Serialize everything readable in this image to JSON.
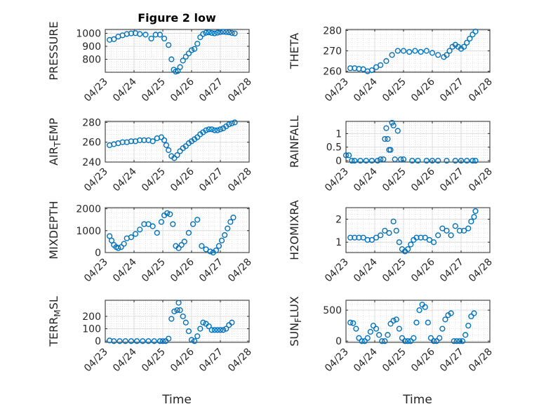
{
  "figure": {
    "title": "Figure 2 low",
    "marker_color": "#0072bd"
  },
  "chart_data": [
    {
      "type": "scatter",
      "ylabel": "PRESSURE",
      "ylim": [
        700,
        1030
      ],
      "yticks": [
        800,
        900,
        1000
      ],
      "xlim": [
        "04/23",
        "04/28"
      ],
      "xtick_labels": [
        "04/23",
        "04/24",
        "04/25",
        "04/26",
        "04/27",
        "04/28"
      ],
      "series": [
        {
          "x": [
            0.15,
            0.3,
            0.45,
            0.6,
            0.75,
            0.9,
            1.05,
            1.2,
            1.4,
            1.6,
            1.75,
            1.9,
            2.05,
            2.2,
            2.3,
            2.38,
            2.45,
            2.52,
            2.6,
            2.7,
            2.8,
            2.9,
            3.0,
            3.1,
            3.2,
            3.3,
            3.4,
            3.5,
            3.6,
            3.7,
            3.8,
            3.9,
            4.0,
            4.1,
            4.2,
            4.3,
            4.4,
            4.5
          ],
          "y": [
            950,
            955,
            975,
            985,
            995,
            1000,
            1002,
            995,
            990,
            960,
            990,
            990,
            960,
            910,
            800,
            720,
            705,
            710,
            740,
            790,
            820,
            845,
            870,
            880,
            920,
            970,
            995,
            1005,
            1008,
            1003,
            1000,
            1005,
            1010,
            1012,
            1010,
            1008,
            1003,
            1000
          ]
        }
      ]
    },
    {
      "type": "scatter",
      "ylabel": "THETA",
      "ylim": [
        259.5,
        280.5
      ],
      "yticks": [
        260,
        270,
        280
      ],
      "xlim": [
        "04/23",
        "04/28"
      ],
      "xtick_labels": [
        "04/23",
        "04/24",
        "04/25",
        "04/26",
        "04/27",
        "04/28"
      ],
      "series": [
        {
          "x": [
            0.15,
            0.3,
            0.45,
            0.6,
            0.75,
            0.9,
            1.05,
            1.2,
            1.4,
            1.6,
            1.8,
            2.0,
            2.2,
            2.4,
            2.6,
            2.8,
            3.0,
            3.2,
            3.4,
            3.5,
            3.6,
            3.7,
            3.8,
            3.9,
            4.0,
            4.1,
            4.2,
            4.3,
            4.4,
            4.5
          ],
          "y": [
            261.5,
            261.5,
            261.2,
            261,
            260,
            260.5,
            262,
            263,
            265,
            268,
            270,
            270,
            269.5,
            270,
            269.5,
            270,
            269,
            268,
            267,
            268,
            270,
            272,
            273,
            272,
            271,
            272,
            274,
            276,
            278,
            279.5
          ]
        }
      ]
    },
    {
      "type": "scatter",
      "ylabel": "AIR_TEMP",
      "ylim": [
        240,
        281
      ],
      "yticks": [
        240,
        260,
        280
      ],
      "xlim": [
        "04/23",
        "04/28"
      ],
      "xtick_labels": [
        "04/23",
        "04/24",
        "04/25",
        "04/26",
        "04/27",
        "04/28"
      ],
      "series": [
        {
          "x": [
            0.15,
            0.3,
            0.45,
            0.6,
            0.75,
            0.9,
            1.05,
            1.2,
            1.35,
            1.5,
            1.65,
            1.8,
            1.95,
            2.05,
            2.12,
            2.2,
            2.3,
            2.4,
            2.5,
            2.6,
            2.7,
            2.8,
            2.9,
            3.0,
            3.1,
            3.2,
            3.3,
            3.4,
            3.5,
            3.6,
            3.7,
            3.8,
            3.9,
            4.0,
            4.1,
            4.2,
            4.3,
            4.4,
            4.5
          ],
          "y": [
            257,
            258,
            259,
            260,
            260,
            261,
            261,
            262,
            262,
            262,
            261,
            264,
            265,
            262,
            257,
            252,
            246,
            244,
            247,
            251,
            254,
            256,
            259,
            261,
            263,
            265,
            268,
            270,
            272,
            273,
            273,
            272,
            272,
            273,
            274,
            276,
            278,
            279,
            280
          ]
        }
      ]
    },
    {
      "type": "scatter",
      "ylabel": "RAINFALL",
      "ylim": [
        -0.05,
        1.45
      ],
      "yticks": [
        0,
        0.5,
        1
      ],
      "xlim": [
        "04/23",
        "04/28"
      ],
      "xtick_labels": [
        "04/23",
        "04/24",
        "04/25",
        "04/26",
        "04/27",
        "04/28"
      ],
      "series": [
        {
          "x": [
            0.0,
            0.1,
            0.2,
            0.3,
            0.5,
            0.7,
            0.9,
            1.1,
            1.2,
            1.3,
            1.35,
            1.4,
            1.45,
            1.5,
            1.55,
            1.6,
            1.65,
            1.7,
            1.8,
            1.9,
            2.0,
            2.3,
            2.5,
            2.8,
            3.0,
            3.2,
            3.5,
            3.8,
            4.0,
            4.2,
            4.4,
            4.5
          ],
          "y": [
            0.2,
            0.2,
            0,
            0,
            0,
            0,
            0,
            0,
            0.05,
            0.05,
            0.8,
            1.2,
            0.8,
            0.4,
            0.4,
            1.4,
            1.3,
            0.05,
            1.1,
            0.05,
            0.05,
            0,
            0,
            0,
            0,
            0,
            0,
            0,
            0,
            0,
            0,
            0
          ]
        }
      ]
    },
    {
      "type": "scatter",
      "ylabel": "MIXDEPTH",
      "ylim": [
        0,
        2050
      ],
      "yticks": [
        0,
        1000,
        2000
      ],
      "xlim": [
        "04/23",
        "04/28"
      ],
      "xtick_labels": [
        "04/23",
        "04/24",
        "04/25",
        "04/26",
        "04/27",
        "04/28"
      ],
      "series": [
        {
          "x": [
            0.15,
            0.22,
            0.3,
            0.38,
            0.45,
            0.55,
            0.65,
            0.75,
            0.9,
            1.05,
            1.2,
            1.35,
            1.5,
            1.65,
            1.8,
            1.95,
            2.05,
            2.15,
            2.25,
            2.35,
            2.45,
            2.55,
            2.65,
            2.75,
            2.9,
            3.05,
            3.2,
            3.35,
            3.5,
            3.65,
            3.75,
            3.85,
            3.95,
            4.05,
            4.15,
            4.25,
            4.35,
            4.45
          ],
          "y": [
            750,
            550,
            350,
            250,
            200,
            250,
            400,
            650,
            700,
            850,
            1050,
            1300,
            1300,
            1200,
            900,
            1400,
            1700,
            1800,
            1750,
            1300,
            300,
            200,
            350,
            500,
            900,
            1300,
            1500,
            300,
            150,
            50,
            0,
            100,
            300,
            550,
            800,
            1100,
            1400,
            1600
          ]
        }
      ]
    },
    {
      "type": "scatter",
      "ylabel": "H2OMIXRA",
      "ylim": [
        0.55,
        2.5
      ],
      "yticks": [
        1,
        2
      ],
      "xlim": [
        "04/23",
        "04/28"
      ],
      "xtick_labels": [
        "04/23",
        "04/24",
        "04/25",
        "04/26",
        "04/27",
        "04/28"
      ],
      "series": [
        {
          "x": [
            0.15,
            0.3,
            0.45,
            0.6,
            0.75,
            0.9,
            1.05,
            1.2,
            1.35,
            1.5,
            1.65,
            1.75,
            1.85,
            1.95,
            2.05,
            2.15,
            2.25,
            2.35,
            2.45,
            2.6,
            2.75,
            2.9,
            3.05,
            3.2,
            3.35,
            3.5,
            3.65,
            3.8,
            3.95,
            4.1,
            4.25,
            4.35,
            4.45,
            4.5
          ],
          "y": [
            1.2,
            1.2,
            1.2,
            1.2,
            1.1,
            1.1,
            1.2,
            1.3,
            1.5,
            1.4,
            1.9,
            1.5,
            1.0,
            0.7,
            0.6,
            0.7,
            0.9,
            1.1,
            1.2,
            1.2,
            1.2,
            1.1,
            1.0,
            1.3,
            1.6,
            1.5,
            1.3,
            1.7,
            1.5,
            1.5,
            1.6,
            1.9,
            2.1,
            2.35
          ]
        }
      ]
    },
    {
      "type": "scatter",
      "ylabel": "TERR_MSL",
      "ylim": [
        -10,
        330
      ],
      "yticks": [
        0,
        100,
        200
      ],
      "xlim": [
        "04/23",
        "04/28"
      ],
      "xtick_labels": [
        "04/23",
        "04/24",
        "04/25",
        "04/26",
        "04/27",
        "04/28"
      ],
      "series": [
        {
          "x": [
            0.15,
            0.3,
            0.5,
            0.7,
            0.9,
            1.1,
            1.3,
            1.5,
            1.7,
            1.9,
            2.0,
            2.1,
            2.2,
            2.3,
            2.4,
            2.5,
            2.55,
            2.6,
            2.7,
            2.8,
            2.9,
            3.0,
            3.1,
            3.2,
            3.3,
            3.4,
            3.5,
            3.6,
            3.7,
            3.8,
            3.9,
            4.0,
            4.1,
            4.2,
            4.3,
            4.4
          ],
          "y": [
            5,
            0,
            0,
            0,
            0,
            0,
            0,
            0,
            0,
            0,
            0,
            0,
            20,
            180,
            240,
            250,
            310,
            250,
            200,
            150,
            80,
            10,
            0,
            40,
            100,
            150,
            140,
            120,
            90,
            90,
            90,
            90,
            90,
            100,
            130,
            150
          ]
        }
      ]
    },
    {
      "type": "scatter",
      "ylabel": "SUN_FLUX",
      "ylim": [
        -20,
        660
      ],
      "yticks": [
        0,
        500
      ],
      "xlim": [
        "04/23",
        "04/28"
      ],
      "xtick_labels": [
        "04/23",
        "04/24",
        "04/25",
        "04/26",
        "04/27",
        "04/28"
      ],
      "series": [
        {
          "x": [
            0.15,
            0.25,
            0.35,
            0.45,
            0.55,
            0.65,
            0.75,
            0.85,
            0.95,
            1.05,
            1.15,
            1.25,
            1.35,
            1.45,
            1.55,
            1.65,
            1.75,
            1.85,
            1.95,
            2.05,
            2.15,
            2.25,
            2.35,
            2.45,
            2.55,
            2.65,
            2.75,
            2.85,
            2.95,
            3.05,
            3.15,
            3.25,
            3.35,
            3.45,
            3.55,
            3.65,
            3.75,
            3.85,
            3.95,
            4.05,
            4.15,
            4.25,
            4.35,
            4.45
          ],
          "y": [
            300,
            290,
            200,
            50,
            0,
            0,
            50,
            150,
            250,
            200,
            100,
            0,
            0,
            100,
            280,
            330,
            350,
            200,
            50,
            0,
            0,
            0,
            50,
            300,
            500,
            590,
            550,
            300,
            50,
            0,
            0,
            50,
            200,
            350,
            420,
            450,
            0,
            0,
            0,
            0,
            100,
            250,
            400,
            450
          ]
        }
      ]
    }
  ],
  "xlabel": "Time"
}
